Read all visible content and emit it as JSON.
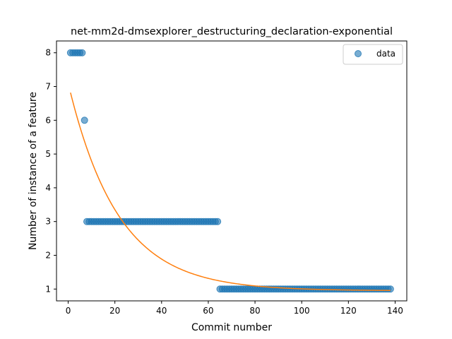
{
  "chart_data": {
    "type": "scatter",
    "title": "net-mm2d-dmsexplorer_destructuring_declaration-exponential",
    "xlabel": "Commit number",
    "ylabel": "Number of instance of a feature",
    "xlim": [
      -5,
      145
    ],
    "ylim": [
      0.65,
      8.35
    ],
    "xticks": [
      0,
      20,
      40,
      60,
      80,
      100,
      120,
      140
    ],
    "yticks": [
      1,
      2,
      3,
      4,
      5,
      6,
      7,
      8
    ],
    "grid": false,
    "legend": {
      "placement": "top-right",
      "entries": [
        "data"
      ]
    },
    "series": [
      {
        "name": "data",
        "kind": "scatter",
        "color": "#1f77b4",
        "segments": [
          {
            "x_from": 1,
            "x_to": 6,
            "y": 8
          },
          {
            "x_from": 7,
            "x_to": 7,
            "y": 6
          },
          {
            "x_from": 8,
            "x_to": 64,
            "y": 3
          },
          {
            "x_from": 65,
            "x_to": 138,
            "y": 1
          }
        ]
      },
      {
        "kind": "fit-line",
        "color": "#ff7f0e",
        "model": "exponential",
        "params": {
          "a": 6.15,
          "b": 0.047,
          "c": 0.95
        },
        "x_range": [
          1,
          138
        ]
      }
    ]
  }
}
